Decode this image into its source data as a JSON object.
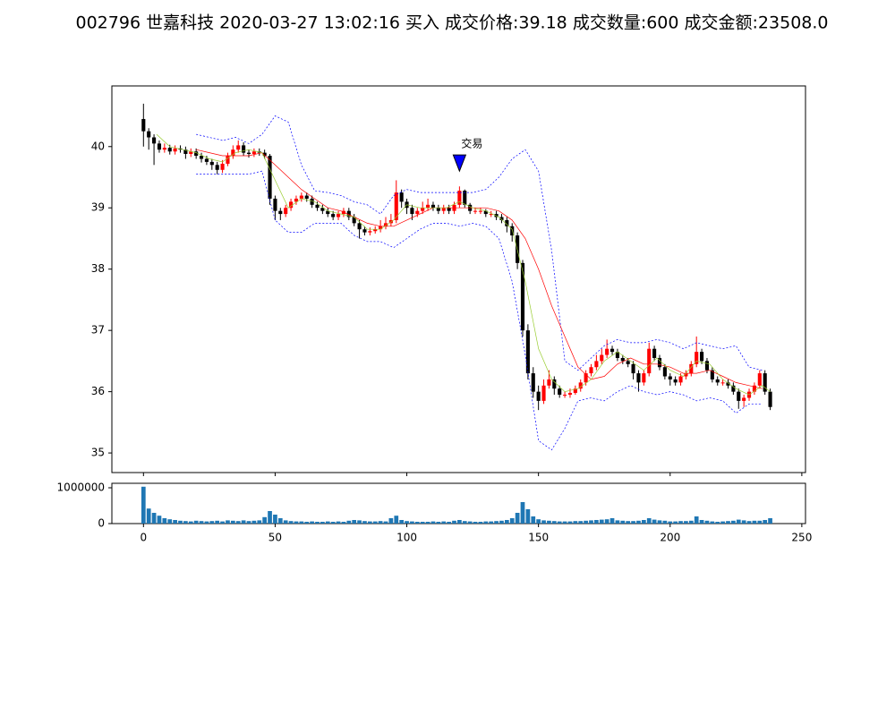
{
  "chart_data": [
    {
      "type": "candlestick",
      "title": "002796 世嘉科技 2020-03-27 13:02:16 买入 成交价格:39.18 成交数量:600 成交金额:23508.0",
      "xlim": [
        -12,
        251.4
      ],
      "ylim": [
        34.68,
        40.99
      ],
      "xticks": [
        0,
        50,
        100,
        150,
        200,
        250
      ],
      "yticks": [
        35,
        36,
        37,
        38,
        39,
        40
      ],
      "up_color": "#ff0000",
      "down_color": "#000000",
      "x": [
        0,
        2,
        4,
        6,
        8,
        10,
        12,
        14,
        16,
        18,
        20,
        22,
        24,
        26,
        28,
        30,
        32,
        34,
        36,
        38,
        40,
        42,
        44,
        46,
        48,
        50,
        52,
        54,
        56,
        58,
        60,
        62,
        64,
        66,
        68,
        70,
        72,
        74,
        76,
        78,
        80,
        82,
        84,
        86,
        88,
        90,
        92,
        94,
        96,
        98,
        100,
        102,
        104,
        106,
        108,
        110,
        112,
        114,
        116,
        118,
        120,
        122,
        124,
        126,
        128,
        130,
        132,
        134,
        136,
        138,
        140,
        142,
        144,
        146,
        148,
        150,
        152,
        154,
        156,
        158,
        160,
        162,
        164,
        166,
        168,
        170,
        172,
        174,
        176,
        178,
        180,
        182,
        184,
        186,
        188,
        190,
        192,
        194,
        196,
        198,
        200,
        202,
        204,
        206,
        208,
        210,
        212,
        214,
        216,
        218,
        220,
        222,
        224,
        226,
        228,
        230,
        232,
        234,
        236,
        238
      ],
      "open": [
        40.45,
        40.25,
        40.15,
        40.05,
        39.95,
        39.98,
        39.92,
        39.97,
        39.95,
        39.88,
        39.92,
        39.85,
        39.8,
        39.75,
        39.7,
        39.62,
        39.72,
        39.85,
        39.95,
        40.02,
        39.9,
        39.88,
        39.92,
        39.9,
        39.85,
        39.15,
        38.95,
        38.9,
        39.0,
        39.1,
        39.15,
        39.2,
        39.15,
        39.05,
        39.0,
        38.95,
        38.9,
        38.85,
        38.9,
        38.95,
        38.85,
        38.75,
        38.65,
        38.6,
        38.62,
        38.65,
        38.7,
        38.75,
        38.8,
        39.25,
        39.1,
        39.0,
        38.9,
        38.95,
        39.0,
        39.05,
        39.0,
        38.95,
        39.0,
        38.95,
        39.05,
        39.28,
        39.05,
        38.95,
        38.95,
        38.95,
        38.9,
        38.9,
        38.85,
        38.8,
        38.7,
        38.55,
        38.1,
        37.0,
        36.3,
        36.0,
        35.85,
        36.1,
        36.2,
        36.05,
        35.95,
        35.95,
        35.98,
        36.05,
        36.15,
        36.3,
        36.4,
        36.5,
        36.6,
        36.7,
        36.65,
        36.55,
        36.5,
        36.45,
        36.3,
        36.15,
        36.3,
        36.7,
        36.55,
        36.4,
        36.25,
        36.2,
        36.15,
        36.25,
        36.3,
        36.45,
        36.65,
        36.5,
        36.35,
        36.2,
        36.15,
        36.15,
        36.1,
        36.0,
        35.85,
        35.9,
        36.0,
        36.1,
        36.3,
        36.0
      ],
      "high": [
        40.7,
        40.3,
        40.2,
        40.1,
        40.05,
        40.03,
        40.02,
        40.02,
        40.0,
        39.97,
        39.97,
        39.9,
        39.85,
        39.8,
        39.75,
        39.78,
        39.9,
        40.02,
        40.1,
        40.07,
        39.95,
        39.97,
        39.97,
        39.95,
        39.88,
        39.2,
        39.0,
        39.05,
        39.15,
        39.2,
        39.25,
        39.25,
        39.2,
        39.1,
        39.05,
        39.0,
        38.95,
        38.95,
        39.0,
        39.0,
        38.9,
        38.8,
        38.7,
        38.68,
        38.7,
        38.8,
        38.85,
        38.9,
        39.45,
        39.3,
        39.15,
        39.05,
        39.0,
        39.1,
        39.15,
        39.1,
        39.05,
        39.05,
        39.05,
        39.1,
        39.35,
        39.3,
        39.08,
        39.0,
        39.0,
        38.98,
        38.95,
        38.95,
        38.9,
        38.85,
        38.75,
        38.6,
        38.15,
        37.1,
        36.4,
        36.1,
        36.2,
        36.35,
        36.25,
        36.1,
        36.0,
        36.05,
        36.1,
        36.2,
        36.35,
        36.45,
        36.6,
        36.7,
        36.85,
        36.75,
        36.7,
        36.6,
        36.55,
        36.5,
        36.35,
        36.35,
        36.8,
        36.75,
        36.6,
        36.45,
        36.3,
        36.25,
        36.3,
        36.35,
        36.5,
        36.9,
        36.7,
        36.55,
        36.4,
        36.25,
        36.2,
        36.2,
        36.15,
        36.05,
        35.95,
        36.05,
        36.15,
        36.35,
        36.35,
        36.05
      ],
      "low": [
        40.0,
        39.95,
        39.7,
        39.9,
        39.9,
        39.87,
        39.87,
        39.9,
        39.8,
        39.83,
        39.8,
        39.74,
        39.7,
        39.62,
        39.55,
        39.57,
        39.68,
        39.8,
        39.9,
        39.85,
        39.82,
        39.83,
        39.85,
        39.8,
        39.05,
        38.8,
        38.8,
        38.85,
        38.95,
        39.05,
        39.1,
        39.1,
        39.0,
        38.95,
        38.9,
        38.85,
        38.8,
        38.8,
        38.85,
        38.8,
        38.7,
        38.5,
        38.55,
        38.55,
        38.58,
        38.6,
        38.65,
        38.7,
        38.75,
        39.0,
        38.9,
        38.8,
        38.85,
        38.9,
        38.95,
        38.95,
        38.9,
        38.9,
        38.9,
        38.9,
        39.0,
        39.0,
        38.9,
        38.9,
        38.9,
        38.85,
        38.85,
        38.8,
        38.75,
        38.6,
        38.45,
        38.0,
        36.9,
        36.2,
        35.9,
        35.7,
        35.8,
        36.05,
        35.95,
        35.9,
        35.9,
        35.9,
        35.95,
        36.0,
        36.1,
        36.25,
        36.35,
        36.45,
        36.55,
        36.6,
        36.5,
        36.45,
        36.4,
        36.2,
        36.0,
        36.1,
        36.25,
        36.5,
        36.35,
        36.2,
        36.1,
        36.1,
        36.1,
        36.2,
        36.25,
        36.4,
        36.45,
        36.3,
        36.15,
        36.1,
        36.1,
        36.05,
        35.95,
        35.72,
        35.75,
        35.85,
        35.95,
        36.05,
        35.95,
        35.7
      ],
      "close": [
        40.25,
        40.15,
        40.05,
        39.95,
        39.98,
        39.92,
        39.97,
        39.95,
        39.88,
        39.92,
        39.85,
        39.8,
        39.75,
        39.7,
        39.62,
        39.72,
        39.85,
        39.95,
        40.02,
        39.9,
        39.88,
        39.92,
        39.9,
        39.85,
        39.15,
        38.95,
        38.9,
        39.0,
        39.1,
        39.15,
        39.2,
        39.15,
        39.05,
        39.0,
        38.95,
        38.9,
        38.85,
        38.9,
        38.95,
        38.85,
        38.75,
        38.65,
        38.6,
        38.62,
        38.65,
        38.7,
        38.75,
        38.8,
        39.25,
        39.1,
        39.0,
        38.9,
        38.95,
        39.0,
        39.05,
        39.0,
        38.95,
        39.0,
        38.95,
        39.05,
        39.28,
        39.05,
        38.95,
        38.95,
        38.95,
        38.9,
        38.9,
        38.85,
        38.8,
        38.7,
        38.55,
        38.1,
        37.0,
        36.3,
        36.0,
        35.85,
        36.1,
        36.2,
        36.05,
        35.95,
        35.95,
        35.98,
        36.05,
        36.15,
        36.3,
        36.4,
        36.5,
        36.6,
        36.7,
        36.65,
        36.55,
        36.5,
        36.45,
        36.3,
        36.15,
        36.3,
        36.7,
        36.55,
        36.4,
        36.25,
        36.2,
        36.15,
        36.25,
        36.3,
        36.45,
        36.65,
        36.5,
        36.35,
        36.2,
        36.15,
        36.15,
        36.1,
        36.0,
        35.85,
        35.9,
        36.0,
        36.1,
        36.3,
        36.0,
        35.75
      ],
      "lines": [
        {
          "color": "#0000ff",
          "dashed": true,
          "x": [
            20,
            25,
            30,
            35,
            40,
            45,
            50,
            55,
            60,
            65,
            70,
            75,
            80,
            85,
            90,
            95,
            100,
            105,
            110,
            115,
            120,
            125,
            130,
            135,
            140,
            145,
            150,
            155,
            160,
            165,
            170,
            175,
            180,
            185,
            190,
            195,
            200,
            205,
            210,
            215,
            220,
            225,
            230,
            235
          ],
          "values": [
            40.2,
            40.15,
            40.1,
            40.15,
            40.05,
            40.2,
            40.5,
            40.4,
            39.7,
            39.28,
            39.25,
            39.2,
            39.1,
            39.05,
            38.9,
            39.2,
            39.3,
            39.25,
            39.25,
            39.25,
            39.25,
            39.25,
            39.3,
            39.5,
            39.8,
            39.95,
            39.6,
            38.3,
            36.5,
            36.35,
            36.55,
            36.75,
            36.85,
            36.8,
            36.8,
            36.85,
            36.8,
            36.7,
            36.8,
            36.75,
            36.7,
            36.75,
            36.4,
            36.35
          ]
        },
        {
          "color": "#0000ff",
          "dashed": true,
          "x": [
            20,
            25,
            30,
            35,
            40,
            45,
            50,
            55,
            60,
            65,
            70,
            75,
            80,
            85,
            90,
            95,
            100,
            105,
            110,
            115,
            120,
            125,
            130,
            135,
            140,
            145,
            150,
            155,
            160,
            165,
            170,
            175,
            180,
            185,
            190,
            195,
            200,
            205,
            210,
            215,
            220,
            225,
            230,
            235
          ],
          "values": [
            39.55,
            39.55,
            39.55,
            39.55,
            39.55,
            39.6,
            38.8,
            38.6,
            38.6,
            38.75,
            38.75,
            38.75,
            38.55,
            38.45,
            38.45,
            38.35,
            38.5,
            38.65,
            38.75,
            38.75,
            38.7,
            38.75,
            38.7,
            38.5,
            37.8,
            36.6,
            35.2,
            35.05,
            35.4,
            35.85,
            35.9,
            35.85,
            36.0,
            36.1,
            36.0,
            35.95,
            36.0,
            35.95,
            35.85,
            35.9,
            35.85,
            35.65,
            35.8,
            35.8
          ]
        },
        {
          "color": "#ff0000",
          "dashed": false,
          "x": [
            20,
            25,
            30,
            35,
            40,
            45,
            50,
            55,
            60,
            65,
            70,
            75,
            80,
            85,
            90,
            95,
            100,
            105,
            110,
            115,
            120,
            125,
            130,
            135,
            140,
            145,
            150,
            155,
            160,
            165,
            170,
            175,
            180,
            185,
            190,
            195,
            200,
            205,
            210,
            215,
            220,
            225,
            230,
            235
          ],
          "values": [
            39.95,
            39.9,
            39.85,
            39.85,
            39.85,
            39.9,
            39.7,
            39.5,
            39.3,
            39.15,
            39.0,
            38.95,
            38.85,
            38.75,
            38.7,
            38.7,
            38.8,
            38.9,
            39.0,
            39.0,
            39.0,
            39.0,
            39.0,
            38.95,
            38.8,
            38.5,
            38.0,
            37.4,
            36.9,
            36.4,
            36.2,
            36.25,
            36.45,
            36.55,
            36.45,
            36.45,
            36.4,
            36.3,
            36.3,
            36.35,
            36.25,
            36.15,
            36.1,
            36.05
          ]
        },
        {
          "color": "#9acd32",
          "dashed": false,
          "x": [
            5,
            10,
            15,
            20,
            25,
            30,
            35,
            40,
            45,
            50,
            55,
            60,
            65,
            70,
            75,
            80,
            85,
            90,
            95,
            100,
            105,
            110,
            115,
            120,
            125,
            130,
            135,
            140,
            145,
            150,
            155,
            160,
            165,
            170,
            175,
            180,
            185,
            190,
            195,
            200,
            205,
            210,
            215,
            220,
            225,
            230,
            235,
            238
          ],
          "values": [
            40.2,
            40.0,
            39.95,
            39.9,
            39.8,
            39.75,
            39.9,
            39.95,
            39.9,
            39.45,
            39.0,
            39.15,
            39.1,
            38.95,
            38.9,
            38.85,
            38.65,
            38.65,
            38.8,
            39.05,
            39.0,
            39.0,
            39.0,
            39.1,
            39.0,
            38.95,
            38.85,
            38.65,
            37.8,
            36.7,
            36.2,
            36.0,
            36.05,
            36.2,
            36.5,
            36.65,
            36.5,
            36.35,
            36.55,
            36.35,
            36.25,
            36.5,
            36.45,
            36.2,
            36.05,
            35.95,
            36.1,
            36.0
          ]
        }
      ],
      "annotation": {
        "text": "交易",
        "x": 120,
        "y": 39.6,
        "color": "#0000ff"
      }
    },
    {
      "type": "bar",
      "color": "#1f77b4",
      "xlim": [
        -12,
        251.4
      ],
      "ylim": [
        0,
        1125000
      ],
      "xticks": [
        0,
        50,
        100,
        150,
        200,
        250
      ],
      "yticks": [
        0,
        1000000
      ],
      "x": [
        0,
        2,
        4,
        6,
        8,
        10,
        12,
        14,
        16,
        18,
        20,
        22,
        24,
        26,
        28,
        30,
        32,
        34,
        36,
        38,
        40,
        42,
        44,
        46,
        48,
        50,
        52,
        54,
        56,
        58,
        60,
        62,
        64,
        66,
        68,
        70,
        72,
        74,
        76,
        78,
        80,
        82,
        84,
        86,
        88,
        90,
        92,
        94,
        96,
        98,
        100,
        102,
        104,
        106,
        108,
        110,
        112,
        114,
        116,
        118,
        120,
        122,
        124,
        126,
        128,
        130,
        132,
        134,
        136,
        138,
        140,
        142,
        144,
        146,
        148,
        150,
        152,
        154,
        156,
        158,
        160,
        162,
        164,
        166,
        168,
        170,
        172,
        174,
        176,
        178,
        180,
        182,
        184,
        186,
        188,
        190,
        192,
        194,
        196,
        198,
        200,
        202,
        204,
        206,
        208,
        210,
        212,
        214,
        216,
        218,
        220,
        222,
        224,
        226,
        228,
        230,
        232,
        234,
        236,
        238
      ],
      "values": [
        1030000,
        420000,
        300000,
        220000,
        150000,
        120000,
        100000,
        80000,
        70000,
        60000,
        80000,
        70000,
        60000,
        70000,
        80000,
        60000,
        90000,
        80000,
        70000,
        90000,
        70000,
        80000,
        90000,
        180000,
        350000,
        250000,
        150000,
        90000,
        70000,
        60000,
        60000,
        50000,
        60000,
        50000,
        50000,
        60000,
        50000,
        60000,
        50000,
        80000,
        100000,
        90000,
        70000,
        60000,
        60000,
        70000,
        60000,
        150000,
        220000,
        100000,
        70000,
        60000,
        50000,
        50000,
        50000,
        60000,
        50000,
        60000,
        50000,
        80000,
        100000,
        70000,
        60000,
        50000,
        50000,
        60000,
        60000,
        70000,
        80000,
        100000,
        150000,
        300000,
        600000,
        400000,
        200000,
        120000,
        90000,
        80000,
        70000,
        60000,
        60000,
        60000,
        70000,
        70000,
        80000,
        90000,
        100000,
        110000,
        120000,
        150000,
        90000,
        80000,
        70000,
        70000,
        80000,
        100000,
        150000,
        110000,
        90000,
        80000,
        60000,
        60000,
        70000,
        70000,
        80000,
        200000,
        100000,
        80000,
        60000,
        50000,
        60000,
        70000,
        80000,
        110000,
        90000,
        70000,
        80000,
        80000,
        100000,
        150000
      ]
    }
  ]
}
